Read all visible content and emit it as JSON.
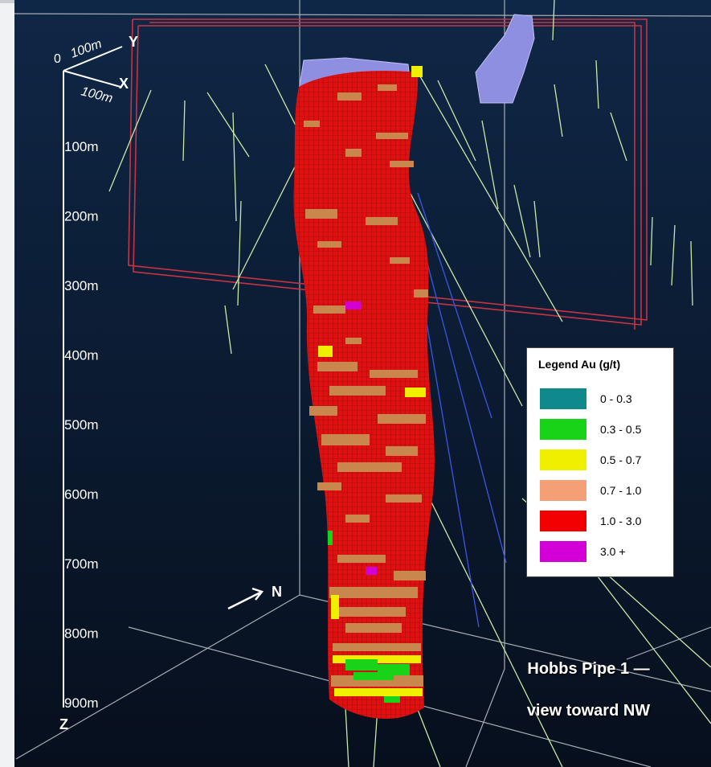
{
  "axes": {
    "origin": "0",
    "y_dist": "100m",
    "y_axis": "Y",
    "x_axis": "X",
    "x_dist": "100m",
    "z_axis": "Z",
    "depth_ticks": [
      "100m",
      "200m",
      "300m",
      "400m",
      "500m",
      "600m",
      "700m",
      "800m",
      "900m"
    ]
  },
  "north_arrow": "N",
  "legend": {
    "title": "Legend  Au (g/t)",
    "items": [
      {
        "label": "0 - 0.3",
        "color": "#0f8a8c"
      },
      {
        "label": "0.3 - 0.5",
        "color": "#18d318"
      },
      {
        "label": "0.5 - 0.7",
        "color": "#f0ef00"
      },
      {
        "label": "0.7 - 1.0",
        "color": "#f59f77"
      },
      {
        "label": "1.0 - 3.0",
        "color": "#f20000"
      },
      {
        "label": "3.0 +",
        "color": "#d200d6"
      }
    ]
  },
  "caption": {
    "line1": "Hobbs Pipe 1 —",
    "line2": "view toward NW"
  },
  "colors": {
    "background_top": "#0b1a33",
    "background_bottom": "#081222",
    "pipe_main": "#e10f0f",
    "pipe_overlay": "#c9874e",
    "plane_outline": "#c83344",
    "box_edges": "#a8adb4",
    "structure": "#8e8fe0"
  }
}
